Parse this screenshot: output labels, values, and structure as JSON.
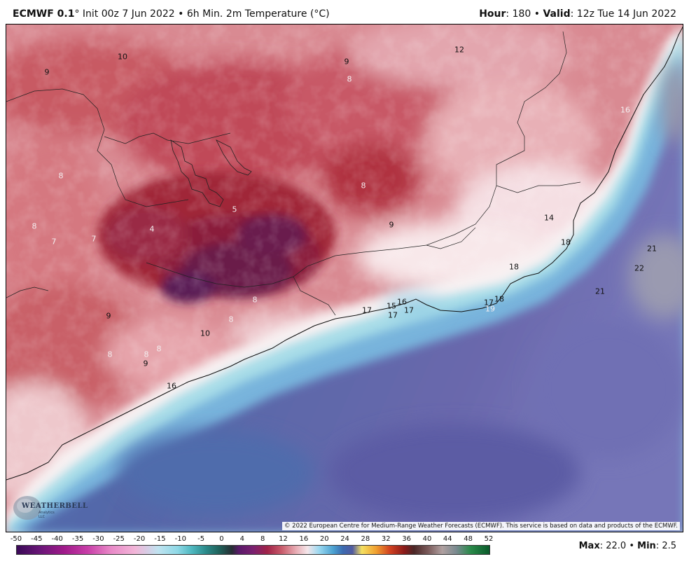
{
  "header": {
    "model": "ECMWF 0.1",
    "degree_symbol": "°",
    "init": "Init 00z 7 Jun 2022",
    "separator": "•",
    "product": "6h Min. 2m Temperature (°C)",
    "hour_label": "Hour",
    "hour_value": ": 180",
    "valid_label": "Valid",
    "valid_value": ": 12z Tue 14 Jun 2022"
  },
  "map": {
    "copyright": "© 2022 European Centre for Medium-Range Weather Forecasts (ECMWF). This service is based on data and products of the ECMWF.",
    "logo_text": "WEATHERBELL",
    "logo_sub": "Analytics LLC",
    "labels": [
      {
        "text": "10",
        "tone": "dark"
      },
      {
        "text": "9",
        "tone": "dark"
      },
      {
        "text": "9",
        "tone": "dark"
      },
      {
        "text": "12",
        "tone": "dark"
      },
      {
        "text": "8",
        "tone": "light"
      },
      {
        "text": "16",
        "tone": "light"
      },
      {
        "text": "8",
        "tone": "light"
      },
      {
        "text": "8",
        "tone": "light"
      },
      {
        "text": "5",
        "tone": "light"
      },
      {
        "text": "4",
        "tone": "light"
      },
      {
        "text": "8",
        "tone": "light"
      },
      {
        "text": "7",
        "tone": "light"
      },
      {
        "text": "7",
        "tone": "light"
      },
      {
        "text": "9",
        "tone": "dark"
      },
      {
        "text": "14",
        "tone": "dark"
      },
      {
        "text": "18",
        "tone": "dark"
      },
      {
        "text": "21",
        "tone": "dark"
      },
      {
        "text": "22",
        "tone": "dark"
      },
      {
        "text": "18",
        "tone": "dark"
      },
      {
        "text": "21",
        "tone": "dark"
      },
      {
        "text": "8",
        "tone": "light"
      },
      {
        "text": "8",
        "tone": "light"
      },
      {
        "text": "9",
        "tone": "dark"
      },
      {
        "text": "10",
        "tone": "dark"
      },
      {
        "text": "17",
        "tone": "dark"
      },
      {
        "text": "15",
        "tone": "dark"
      },
      {
        "text": "16",
        "tone": "dark"
      },
      {
        "text": "17",
        "tone": "dark"
      },
      {
        "text": "17",
        "tone": "dark"
      },
      {
        "text": "17",
        "tone": "dark"
      },
      {
        "text": "18",
        "tone": "dark"
      },
      {
        "text": "19",
        "tone": "light"
      },
      {
        "text": "8",
        "tone": "light"
      },
      {
        "text": "8",
        "tone": "light"
      },
      {
        "text": "8",
        "tone": "light"
      },
      {
        "text": "9",
        "tone": "dark"
      },
      {
        "text": "16",
        "tone": "dark"
      }
    ]
  },
  "colorbar": {
    "ticks": [
      "-50",
      "-45",
      "-40",
      "-35",
      "-30",
      "-25",
      "-20",
      "-15",
      "-10",
      "-5",
      "0",
      "4",
      "8",
      "12",
      "16",
      "20",
      "24",
      "28",
      "32",
      "36",
      "40",
      "44",
      "48",
      "52"
    ]
  },
  "stats": {
    "max_label": "Max",
    "max_value": ": 22.0",
    "separator": "•",
    "min_label": "Min",
    "min_value": ": 2.5"
  }
}
